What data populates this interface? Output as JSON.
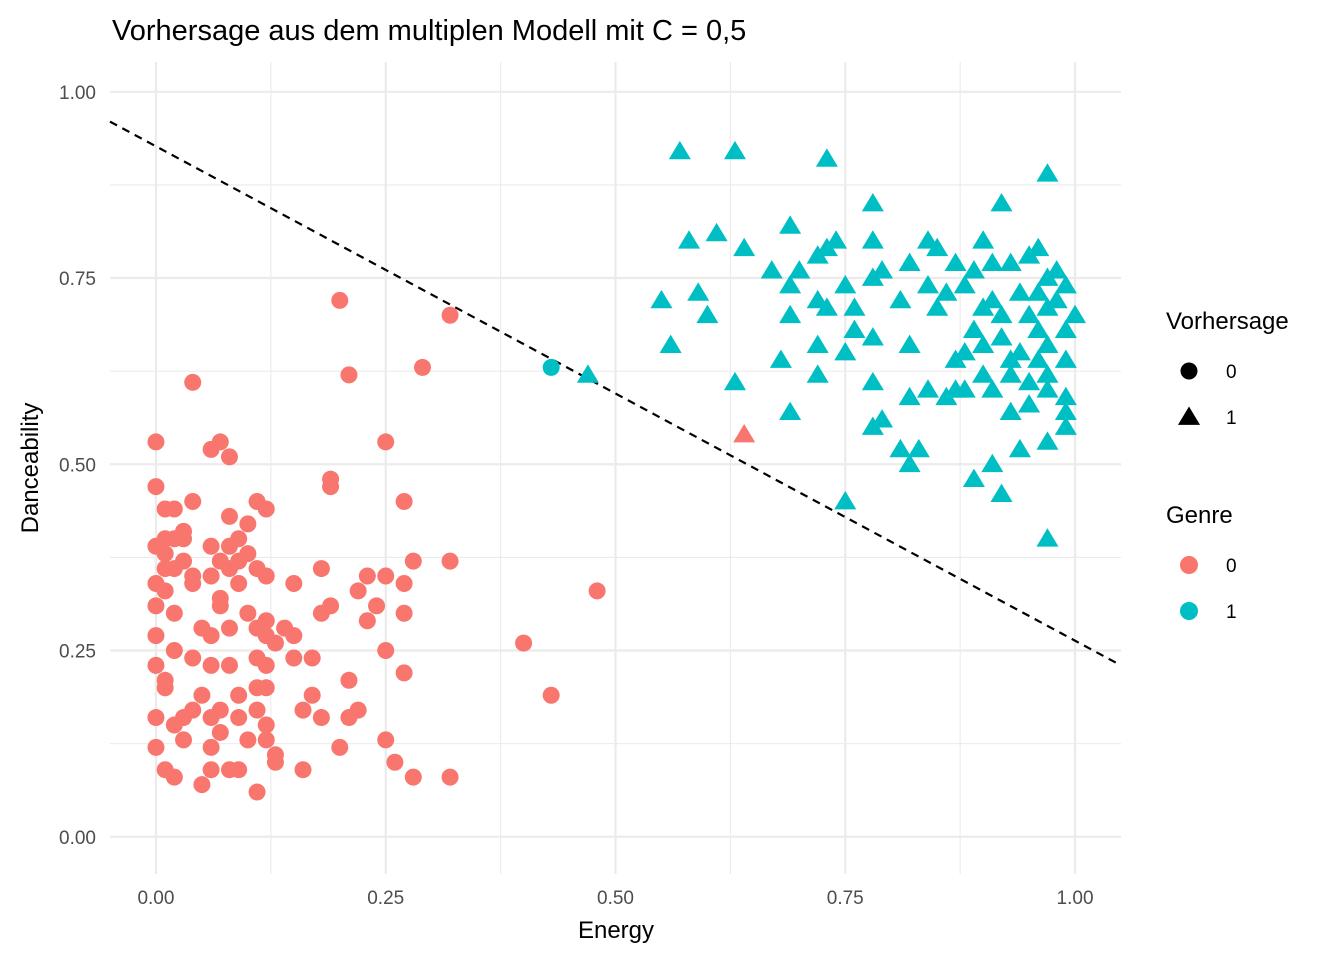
{
  "chart_data": {
    "type": "scatter",
    "title": "Vorhersage aus dem multiplen Modell mit C = 0,5",
    "xlabel": "Energy",
    "ylabel": "Danceability",
    "xlim": [
      -0.05,
      1.05
    ],
    "ylim": [
      -0.05,
      1.04
    ],
    "x_ticks": [
      0.0,
      0.25,
      0.5,
      0.75,
      1.0
    ],
    "x_tick_labels": [
      "0.00",
      "0.25",
      "0.50",
      "0.75",
      "1.00"
    ],
    "y_ticks": [
      0.0,
      0.25,
      0.5,
      0.75,
      1.0
    ],
    "y_tick_labels": [
      "0.00",
      "0.25",
      "0.50",
      "0.75",
      "1.00"
    ],
    "grid": true,
    "legend_position": "right",
    "legends": {
      "shape": {
        "title": "Vorhersage",
        "entries": [
          {
            "label": "0",
            "shape": "circle"
          },
          {
            "label": "1",
            "shape": "triangle"
          }
        ]
      },
      "color": {
        "title": "Genre",
        "entries": [
          {
            "label": "0",
            "color": "#F8766D"
          },
          {
            "label": "1",
            "color": "#00BFC4"
          }
        ]
      }
    },
    "decision_boundary": {
      "style": "dashed",
      "color": "#000000",
      "points": [
        [
          -0.05,
          0.96
        ],
        [
          1.05,
          0.23
        ]
      ]
    },
    "series": [
      {
        "genre": "0",
        "prediction": "0",
        "shape": "circle",
        "color": "#F8766D",
        "points": [
          [
            0.2,
            0.72
          ],
          [
            0.32,
            0.7
          ],
          [
            0.21,
            0.62
          ],
          [
            0.29,
            0.63
          ],
          [
            0.04,
            0.61
          ],
          [
            0.0,
            0.53
          ],
          [
            0.06,
            0.52
          ],
          [
            0.07,
            0.53
          ],
          [
            0.08,
            0.51
          ],
          [
            0.25,
            0.53
          ],
          [
            0.19,
            0.48
          ],
          [
            0.19,
            0.47
          ],
          [
            0.0,
            0.47
          ],
          [
            0.11,
            0.45
          ],
          [
            0.04,
            0.45
          ],
          [
            0.27,
            0.45
          ],
          [
            0.01,
            0.44
          ],
          [
            0.02,
            0.44
          ],
          [
            0.08,
            0.43
          ],
          [
            0.12,
            0.44
          ],
          [
            0.03,
            0.41
          ],
          [
            0.1,
            0.42
          ],
          [
            0.01,
            0.4
          ],
          [
            0.02,
            0.4
          ],
          [
            0.03,
            0.4
          ],
          [
            0.09,
            0.4
          ],
          [
            0.0,
            0.39
          ],
          [
            0.01,
            0.38
          ],
          [
            0.06,
            0.39
          ],
          [
            0.08,
            0.39
          ],
          [
            0.1,
            0.38
          ],
          [
            0.09,
            0.37
          ],
          [
            0.02,
            0.36
          ],
          [
            0.03,
            0.37
          ],
          [
            0.07,
            0.37
          ],
          [
            0.11,
            0.36
          ],
          [
            0.12,
            0.35
          ],
          [
            0.01,
            0.36
          ],
          [
            0.04,
            0.35
          ],
          [
            0.06,
            0.35
          ],
          [
            0.08,
            0.36
          ],
          [
            0.0,
            0.34
          ],
          [
            0.04,
            0.34
          ],
          [
            0.09,
            0.34
          ],
          [
            0.15,
            0.34
          ],
          [
            0.18,
            0.36
          ],
          [
            0.23,
            0.35
          ],
          [
            0.25,
            0.35
          ],
          [
            0.27,
            0.34
          ],
          [
            0.28,
            0.37
          ],
          [
            0.32,
            0.37
          ],
          [
            0.48,
            0.33
          ],
          [
            0.01,
            0.33
          ],
          [
            0.07,
            0.32
          ],
          [
            0.07,
            0.31
          ],
          [
            0.0,
            0.31
          ],
          [
            0.02,
            0.3
          ],
          [
            0.1,
            0.3
          ],
          [
            0.12,
            0.29
          ],
          [
            0.11,
            0.28
          ],
          [
            0.14,
            0.28
          ],
          [
            0.19,
            0.31
          ],
          [
            0.18,
            0.3
          ],
          [
            0.22,
            0.33
          ],
          [
            0.24,
            0.31
          ],
          [
            0.23,
            0.29
          ],
          [
            0.27,
            0.3
          ],
          [
            0.0,
            0.27
          ],
          [
            0.05,
            0.28
          ],
          [
            0.06,
            0.27
          ],
          [
            0.08,
            0.28
          ],
          [
            0.12,
            0.27
          ],
          [
            0.13,
            0.26
          ],
          [
            0.15,
            0.27
          ],
          [
            0.02,
            0.25
          ],
          [
            0.04,
            0.24
          ],
          [
            0.0,
            0.23
          ],
          [
            0.06,
            0.23
          ],
          [
            0.08,
            0.23
          ],
          [
            0.11,
            0.24
          ],
          [
            0.12,
            0.23
          ],
          [
            0.15,
            0.24
          ],
          [
            0.17,
            0.24
          ],
          [
            0.25,
            0.25
          ],
          [
            0.27,
            0.22
          ],
          [
            0.4,
            0.26
          ],
          [
            0.01,
            0.21
          ],
          [
            0.01,
            0.2
          ],
          [
            0.05,
            0.19
          ],
          [
            0.09,
            0.19
          ],
          [
            0.11,
            0.2
          ],
          [
            0.12,
            0.2
          ],
          [
            0.17,
            0.19
          ],
          [
            0.21,
            0.21
          ],
          [
            0.43,
            0.19
          ],
          [
            0.04,
            0.17
          ],
          [
            0.06,
            0.16
          ],
          [
            0.07,
            0.17
          ],
          [
            0.09,
            0.16
          ],
          [
            0.0,
            0.16
          ],
          [
            0.02,
            0.15
          ],
          [
            0.03,
            0.16
          ],
          [
            0.11,
            0.17
          ],
          [
            0.12,
            0.15
          ],
          [
            0.16,
            0.17
          ],
          [
            0.18,
            0.16
          ],
          [
            0.21,
            0.16
          ],
          [
            0.22,
            0.17
          ],
          [
            0.07,
            0.14
          ],
          [
            0.03,
            0.13
          ],
          [
            0.06,
            0.12
          ],
          [
            0.0,
            0.12
          ],
          [
            0.12,
            0.13
          ],
          [
            0.13,
            0.11
          ],
          [
            0.1,
            0.13
          ],
          [
            0.2,
            0.12
          ],
          [
            0.25,
            0.13
          ],
          [
            0.13,
            0.1
          ],
          [
            0.01,
            0.09
          ],
          [
            0.02,
            0.08
          ],
          [
            0.06,
            0.09
          ],
          [
            0.08,
            0.09
          ],
          [
            0.09,
            0.09
          ],
          [
            0.16,
            0.09
          ],
          [
            0.26,
            0.1
          ],
          [
            0.28,
            0.08
          ],
          [
            0.32,
            0.08
          ],
          [
            0.05,
            0.07
          ],
          [
            0.11,
            0.06
          ]
        ]
      },
      {
        "genre": "1",
        "prediction": "0",
        "shape": "circle",
        "color": "#00BFC4",
        "points": [
          [
            0.43,
            0.63
          ]
        ]
      },
      {
        "genre": "0",
        "prediction": "1",
        "shape": "triangle",
        "color": "#F8766D",
        "points": [
          [
            0.64,
            0.54
          ]
        ]
      },
      {
        "genre": "1",
        "prediction": "1",
        "shape": "triangle",
        "color": "#00BFC4",
        "points": [
          [
            0.57,
            0.92
          ],
          [
            0.63,
            0.92
          ],
          [
            0.73,
            0.91
          ],
          [
            0.97,
            0.89
          ],
          [
            0.78,
            0.85
          ],
          [
            0.92,
            0.85
          ],
          [
            0.69,
            0.82
          ],
          [
            0.61,
            0.81
          ],
          [
            0.58,
            0.8
          ],
          [
            0.64,
            0.79
          ],
          [
            0.73,
            0.79
          ],
          [
            0.74,
            0.8
          ],
          [
            0.78,
            0.8
          ],
          [
            0.84,
            0.8
          ],
          [
            0.85,
            0.79
          ],
          [
            0.9,
            0.8
          ],
          [
            0.96,
            0.79
          ],
          [
            0.72,
            0.78
          ],
          [
            0.82,
            0.77
          ],
          [
            0.87,
            0.77
          ],
          [
            0.91,
            0.77
          ],
          [
            0.93,
            0.77
          ],
          [
            0.95,
            0.78
          ],
          [
            0.98,
            0.76
          ],
          [
            0.67,
            0.76
          ],
          [
            0.7,
            0.76
          ],
          [
            0.79,
            0.76
          ],
          [
            0.89,
            0.76
          ],
          [
            0.78,
            0.75
          ],
          [
            0.97,
            0.75
          ],
          [
            0.99,
            0.74
          ],
          [
            0.59,
            0.73
          ],
          [
            0.69,
            0.74
          ],
          [
            0.75,
            0.74
          ],
          [
            0.84,
            0.74
          ],
          [
            0.88,
            0.74
          ],
          [
            0.94,
            0.73
          ],
          [
            0.96,
            0.73
          ],
          [
            0.55,
            0.72
          ],
          [
            0.72,
            0.72
          ],
          [
            0.81,
            0.72
          ],
          [
            0.86,
            0.73
          ],
          [
            0.91,
            0.72
          ],
          [
            0.98,
            0.72
          ],
          [
            0.6,
            0.7
          ],
          [
            0.69,
            0.7
          ],
          [
            0.73,
            0.71
          ],
          [
            0.76,
            0.71
          ],
          [
            0.85,
            0.71
          ],
          [
            0.9,
            0.71
          ],
          [
            0.92,
            0.7
          ],
          [
            0.95,
            0.7
          ],
          [
            0.97,
            0.71
          ],
          [
            1.0,
            0.7
          ],
          [
            0.76,
            0.68
          ],
          [
            0.78,
            0.67
          ],
          [
            0.89,
            0.68
          ],
          [
            0.92,
            0.67
          ],
          [
            0.96,
            0.68
          ],
          [
            0.99,
            0.68
          ],
          [
            0.72,
            0.66
          ],
          [
            0.56,
            0.66
          ],
          [
            0.82,
            0.66
          ],
          [
            0.9,
            0.66
          ],
          [
            0.94,
            0.65
          ],
          [
            0.97,
            0.66
          ],
          [
            0.68,
            0.64
          ],
          [
            0.75,
            0.65
          ],
          [
            0.87,
            0.64
          ],
          [
            0.88,
            0.65
          ],
          [
            0.93,
            0.64
          ],
          [
            0.96,
            0.64
          ],
          [
            0.99,
            0.64
          ],
          [
            0.72,
            0.62
          ],
          [
            0.78,
            0.61
          ],
          [
            0.9,
            0.62
          ],
          [
            0.93,
            0.62
          ],
          [
            0.95,
            0.61
          ],
          [
            0.97,
            0.62
          ],
          [
            0.47,
            0.62
          ],
          [
            0.63,
            0.61
          ],
          [
            0.84,
            0.6
          ],
          [
            0.86,
            0.59
          ],
          [
            0.88,
            0.6
          ],
          [
            0.91,
            0.6
          ],
          [
            0.97,
            0.6
          ],
          [
            0.99,
            0.59
          ],
          [
            0.82,
            0.59
          ],
          [
            0.87,
            0.6
          ],
          [
            0.95,
            0.58
          ],
          [
            0.99,
            0.57
          ],
          [
            0.69,
            0.57
          ],
          [
            0.79,
            0.56
          ],
          [
            0.78,
            0.55
          ],
          [
            0.93,
            0.57
          ],
          [
            0.99,
            0.55
          ],
          [
            0.81,
            0.52
          ],
          [
            0.83,
            0.52
          ],
          [
            0.94,
            0.52
          ],
          [
            0.97,
            0.53
          ],
          [
            0.82,
            0.5
          ],
          [
            0.91,
            0.5
          ],
          [
            0.75,
            0.45
          ],
          [
            0.89,
            0.48
          ],
          [
            0.92,
            0.46
          ],
          [
            0.97,
            0.4
          ]
        ]
      }
    ]
  }
}
